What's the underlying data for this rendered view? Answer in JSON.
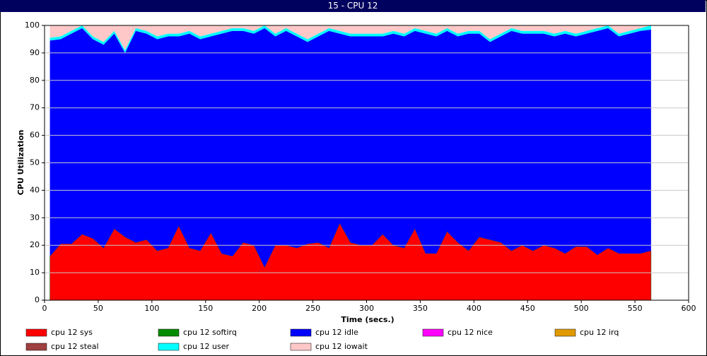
{
  "chart_data": {
    "type": "stacked_area",
    "title": "15 - CPU 12",
    "xlabel": "Time (secs.)",
    "ylabel": "CPU Utilization",
    "x": [
      5,
      15,
      25,
      35,
      45,
      55,
      65,
      75,
      85,
      95,
      105,
      115,
      125,
      135,
      145,
      155,
      165,
      175,
      185,
      195,
      205,
      215,
      225,
      235,
      245,
      255,
      265,
      275,
      285,
      295,
      305,
      315,
      325,
      335,
      345,
      355,
      365,
      375,
      385,
      395,
      405,
      415,
      425,
      435,
      445,
      455,
      465,
      475,
      485,
      495,
      505,
      515,
      525,
      535,
      545,
      555,
      565
    ],
    "xlim": [
      0,
      600
    ],
    "xticks": [
      0,
      50,
      100,
      150,
      200,
      250,
      300,
      350,
      400,
      450,
      500,
      550,
      600
    ],
    "ylim": [
      0,
      100
    ],
    "yticks": [
      0,
      10,
      20,
      30,
      40,
      50,
      60,
      70,
      80,
      90,
      100
    ],
    "grid": true,
    "series": [
      {
        "name": "cpu 12 sys",
        "color": "#ff0000",
        "values": [
          16,
          20.5,
          20.5,
          24,
          22.5,
          19,
          26,
          23,
          21,
          22,
          18,
          19,
          27,
          19,
          18,
          24.5,
          17,
          16,
          21,
          20,
          12,
          20,
          20,
          19,
          20.5,
          21,
          19,
          28,
          21,
          20,
          20,
          24,
          20,
          19,
          26,
          17,
          17,
          25,
          21,
          18,
          23,
          22,
          21,
          18,
          20,
          18,
          20,
          19,
          17,
          19.5,
          19.5,
          16.5,
          19,
          17,
          17,
          17,
          18
        ]
      },
      {
        "name": "cpu 12 softirq",
        "color": "#008c00",
        "values": [
          0,
          0,
          0,
          0,
          0,
          0,
          0,
          0,
          0,
          0,
          0,
          0,
          0,
          0,
          0,
          0,
          0,
          0,
          0,
          0,
          0,
          0,
          0,
          0,
          0,
          0,
          0,
          0,
          0,
          0,
          0,
          0,
          0,
          0,
          0,
          0,
          0,
          0,
          0,
          0,
          0,
          0,
          0,
          0,
          0,
          0,
          0,
          0,
          0,
          0,
          0,
          0,
          0,
          0,
          0,
          0,
          0
        ]
      },
      {
        "name": "cpu 12 idle",
        "color": "#0000ff",
        "values": [
          78.5,
          74.5,
          76.5,
          75,
          72.5,
          74,
          71,
          67,
          77,
          75,
          77,
          77,
          69,
          78,
          77,
          71.5,
          80,
          82,
          77,
          77,
          87,
          76,
          78,
          77,
          73.5,
          75,
          79,
          69,
          75,
          76,
          76,
          72,
          77,
          77,
          72,
          80,
          79,
          73,
          75,
          79,
          74,
          72,
          75,
          80,
          77,
          79,
          77,
          77,
          80,
          76.5,
          77.5,
          81.5,
          80,
          79,
          80,
          81,
          80.5
        ]
      },
      {
        "name": "cpu 12 nice",
        "color": "#ff00ff",
        "values": [
          0,
          0,
          0,
          0,
          0,
          0,
          0,
          0,
          0,
          0,
          0,
          0,
          0,
          0,
          0,
          0,
          0,
          0,
          0,
          0,
          0,
          0,
          0,
          0,
          0,
          0,
          0,
          0,
          0,
          0,
          0,
          0,
          0,
          0,
          0,
          0,
          0,
          0,
          0,
          0,
          0,
          0,
          0,
          0,
          0,
          0,
          0,
          0,
          0,
          0,
          0,
          0,
          0,
          0,
          0,
          0,
          0
        ]
      },
      {
        "name": "cpu 12 irq",
        "color": "#e09a00",
        "values": [
          0,
          0,
          0,
          0,
          0,
          0,
          0,
          0,
          0,
          0,
          0,
          0,
          0,
          0,
          0,
          0,
          0,
          0,
          0,
          0,
          0,
          0,
          0,
          0,
          0,
          0,
          0,
          0,
          0,
          0,
          0,
          0,
          0,
          0,
          0,
          0,
          0,
          0,
          0,
          0,
          0,
          0,
          0,
          0,
          0,
          0,
          0,
          0,
          0,
          0,
          0,
          0,
          0,
          0,
          0,
          0,
          0
        ]
      },
      {
        "name": "cpu 12 steal",
        "color": "#a04040",
        "values": [
          0,
          0,
          0,
          0,
          0,
          0,
          0,
          0,
          0,
          0,
          0,
          0,
          0,
          0,
          0,
          0,
          0,
          0,
          0,
          0,
          0,
          0,
          0,
          0,
          0,
          0,
          0,
          0,
          0,
          0,
          0,
          0,
          0,
          0,
          0,
          0,
          0,
          0,
          0,
          0,
          0,
          0,
          0,
          0,
          0,
          0,
          0,
          0,
          0,
          0,
          0,
          0,
          0,
          0,
          0,
          0,
          0
        ]
      },
      {
        "name": "cpu 12 user",
        "color": "#00ffff",
        "values": [
          1,
          1,
          1,
          1,
          1,
          1,
          1,
          1,
          1,
          1,
          1,
          1,
          1,
          1,
          1,
          1,
          1,
          1,
          1,
          1,
          1,
          1,
          1,
          1,
          1,
          1,
          1,
          1,
          1,
          1,
          1,
          1,
          1,
          1,
          1,
          1,
          1,
          1,
          1,
          1,
          1,
          1,
          1,
          1,
          1,
          1,
          1,
          1,
          1,
          1,
          1,
          1,
          1,
          1,
          1,
          1,
          1.5
        ]
      },
      {
        "name": "cpu 12 iowait",
        "color": "#ffc8c8",
        "values": [
          4.5,
          4,
          2,
          0,
          4,
          6,
          2,
          9,
          1,
          2,
          4,
          3,
          3,
          2,
          4,
          3,
          2,
          1,
          1,
          2,
          0,
          3,
          1,
          3,
          5,
          3,
          1,
          2,
          3,
          3,
          3,
          3,
          2,
          3,
          1,
          2,
          3,
          1,
          3,
          2,
          2,
          5,
          3,
          1,
          2,
          2,
          2,
          3,
          2,
          3,
          2,
          1,
          0,
          3,
          2,
          1,
          0
        ]
      }
    ]
  }
}
